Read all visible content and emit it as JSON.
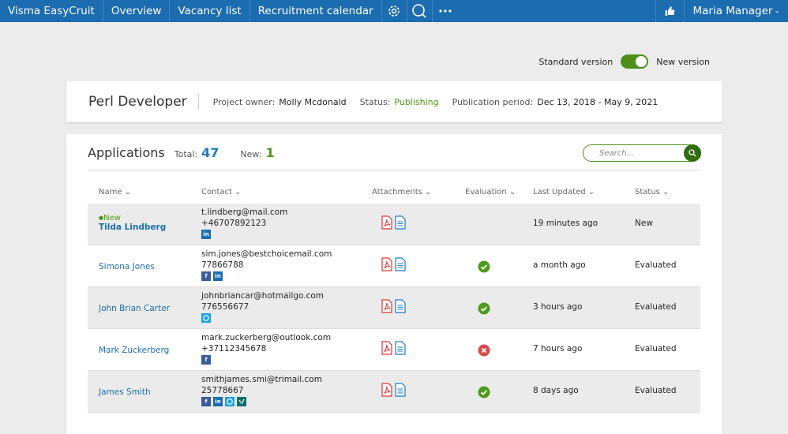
{
  "nav": {
    "brand": "Visma EasyCruit",
    "items": [
      "Overview",
      "Vacancy list",
      "Recruitment calendar"
    ],
    "user": "Maria Manager"
  },
  "toggle": {
    "left": "Standard version",
    "right": "New version"
  },
  "job": {
    "title": "Perl Developer",
    "owner_label": "Project owner:",
    "owner": "Molly Mcdonald",
    "status_label": "Status:",
    "status": "Publishing",
    "period_label": "Publication period:",
    "period": "Dec 13, 2018 - May 9, 2021"
  },
  "applications": {
    "title": "Applications",
    "total_label": "Total:",
    "total": 47,
    "new_label": "New:",
    "new": 1,
    "search_placeholder": "Search...",
    "columns": [
      "Name",
      "Contact",
      "Attachments",
      "Evaluation",
      "Last Updated",
      "Status"
    ],
    "rows": [
      {
        "badge": "New",
        "name": "Tilda Lindberg",
        "email": "t.lindberg@mail.com",
        "phone": "+46707892123",
        "social": [
          "in"
        ],
        "updated": "19 minutes ago",
        "status": "New"
      },
      {
        "name": "Simona Jones",
        "email": "sim.jones@bestchoicemail.com",
        "phone": "77866788",
        "social": [
          "f",
          "in"
        ],
        "updated": "a month ago",
        "status": "Evaluated"
      },
      {
        "name": "John Brian Carter",
        "email": "johnbriancar@hotmailgo.com",
        "phone": "776556677",
        "updated": "3 hours ago",
        "status": "Evaluated"
      },
      {
        "name": "Mark Zuckerberg",
        "email": "mark.zuckerberg@outlook.com",
        "phone": "+37112345678",
        "social": [
          "f"
        ],
        "updated": "7 hours ago",
        "status": "Evaluated"
      },
      {
        "name": "James Smith",
        "email": "smithjames.smi@trimail.com",
        "phone": "25778667",
        "social": [
          "f",
          "in"
        ],
        "updated": "8 days ago",
        "status": "Evaluated"
      }
    ]
  }
}
